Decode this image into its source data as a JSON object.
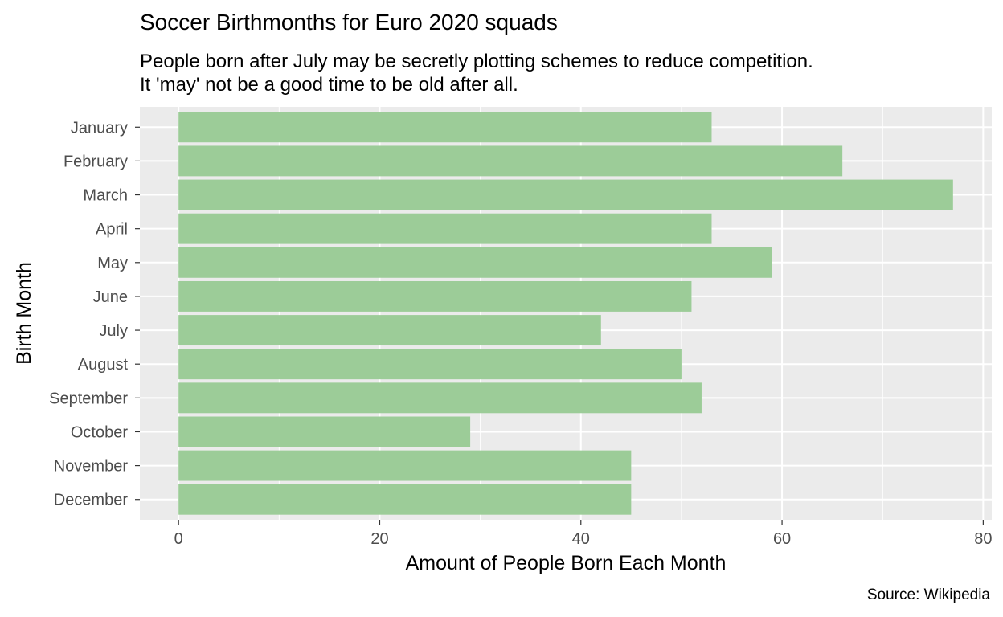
{
  "chart_data": {
    "type": "bar",
    "orientation": "horizontal",
    "title": "Soccer Birthmonths for Euro 2020 squads",
    "subtitle": [
      "People born after July may be secretly plotting schemes to reduce competition.",
      "It 'may' not be a good time to be old after all."
    ],
    "xlabel": "Amount of People Born Each Month",
    "ylabel": "Birth Month",
    "caption": "Source: Wikipedia",
    "categories": [
      "January",
      "February",
      "March",
      "April",
      "May",
      "June",
      "July",
      "August",
      "September",
      "October",
      "November",
      "December"
    ],
    "values": [
      53,
      66,
      77,
      53,
      59,
      51,
      42,
      50,
      52,
      29,
      45,
      45
    ],
    "xlim": [
      -3.85,
      80.85
    ],
    "x_ticks": [
      0,
      20,
      40,
      60,
      80
    ],
    "x_tick_labels": [
      "0",
      "20",
      "40",
      "60",
      "80"
    ],
    "grid": true,
    "colors": {
      "bar": "#9ccc98",
      "panel_background": "#ebebeb",
      "grid": "#ffffff",
      "tick_label": "#4d4d4d",
      "tick_mark": "#333333"
    }
  }
}
